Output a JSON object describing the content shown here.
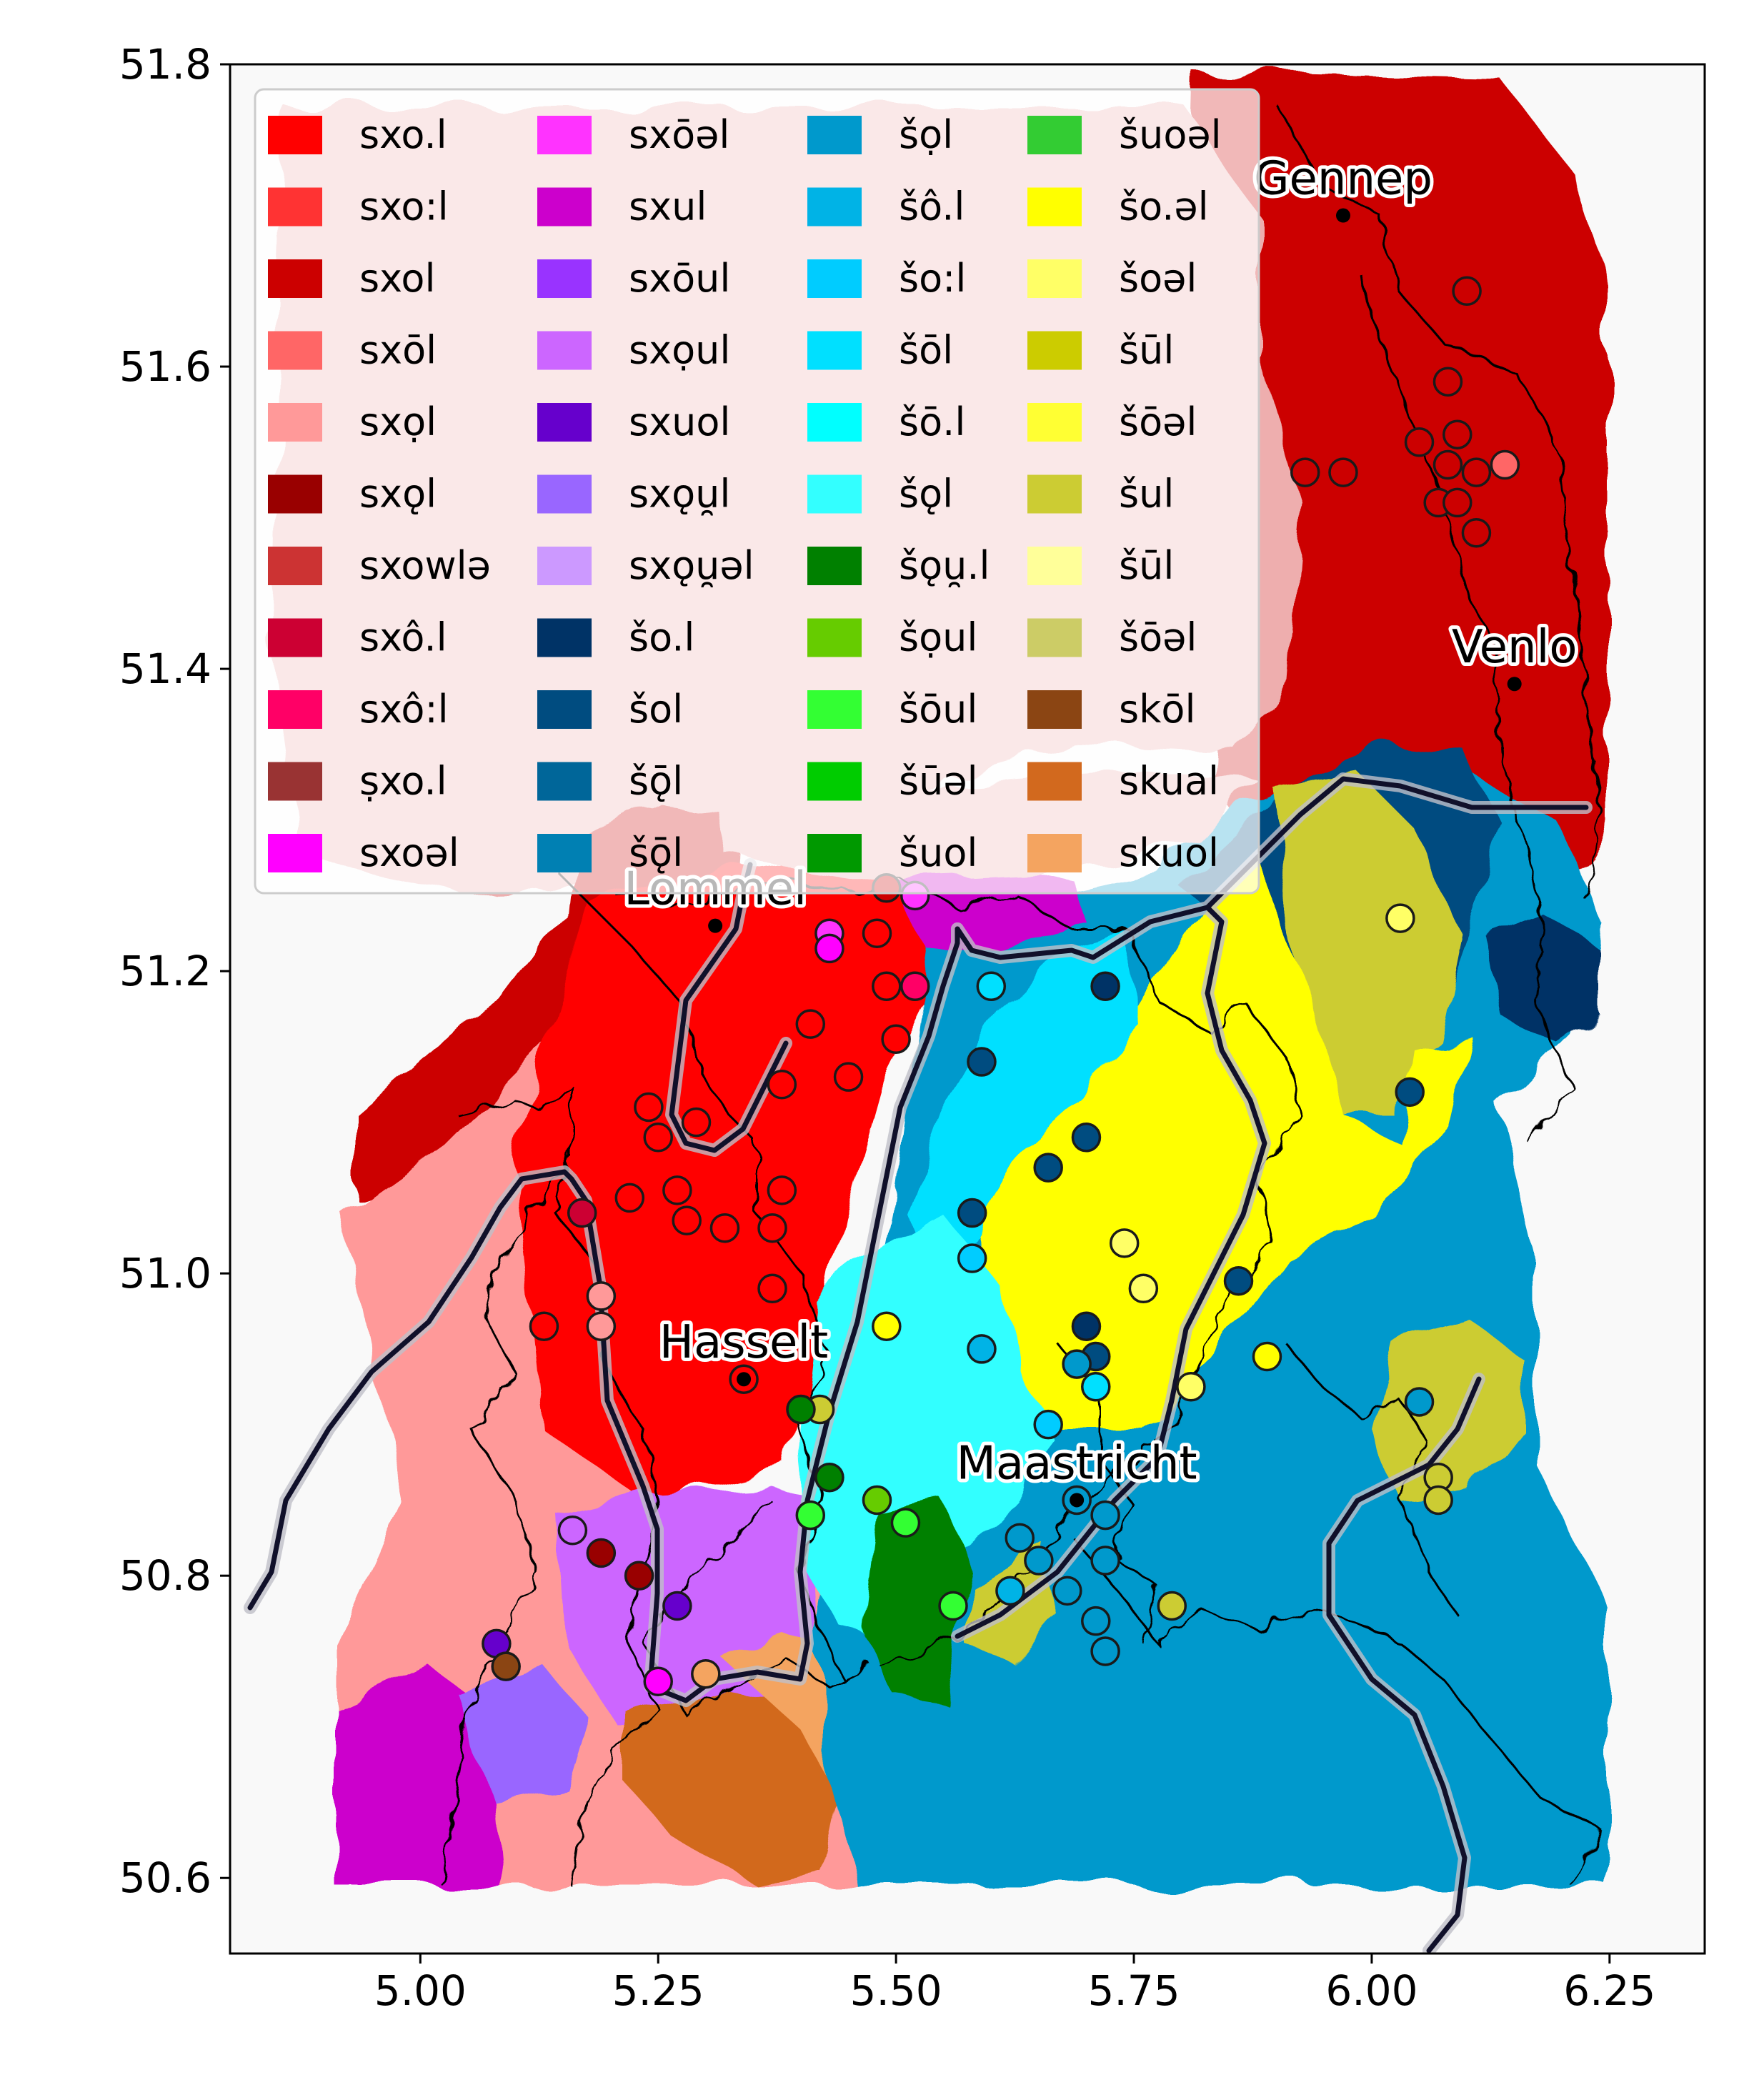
{
  "axes": {
    "x_ticks": [
      "5.00",
      "5.25",
      "5.50",
      "5.75",
      "6.00",
      "6.25"
    ],
    "y_ticks": [
      "51.8",
      "51.6",
      "51.4",
      "51.2",
      "51.0",
      "50.8",
      "50.6"
    ]
  },
  "cities": [
    {
      "name": "Gennep",
      "lon": 5.97,
      "lat": 51.7
    },
    {
      "name": "Venlo",
      "lon": 6.15,
      "lat": 51.39
    },
    {
      "name": "Lommel",
      "lon": 5.31,
      "lat": 51.23
    },
    {
      "name": "Hasselt",
      "lon": 5.34,
      "lat": 50.93
    },
    {
      "name": "Maastricht",
      "lon": 5.69,
      "lat": 50.85
    }
  ],
  "legend": {
    "placement": "upper-left",
    "columns": 4,
    "items": [
      {
        "label": "sxo.l",
        "color": "#ff0000"
      },
      {
        "label": "sxo:l",
        "color": "#ff3333"
      },
      {
        "label": "sxol",
        "color": "#cc0000"
      },
      {
        "label": "sxōl",
        "color": "#ff6666"
      },
      {
        "label": "sxọl",
        "color": "#ff9999"
      },
      {
        "label": "sxǫl",
        "color": "#990000"
      },
      {
        "label": "sxowlə",
        "color": "#cc3333"
      },
      {
        "label": "sxô.l",
        "color": "#cc0033"
      },
      {
        "label": "sxô:l",
        "color": "#ff0066"
      },
      {
        "label": "ṣxo.l",
        "color": "#993333"
      },
      {
        "label": "sxoəl",
        "color": "#ff00ff"
      },
      {
        "label": "sxōəl",
        "color": "#ff33ff"
      },
      {
        "label": "sxul",
        "color": "#cc00cc"
      },
      {
        "label": "sxōul",
        "color": "#9933ff"
      },
      {
        "label": "sxọul",
        "color": "#cc66ff"
      },
      {
        "label": "sxuol",
        "color": "#6600cc"
      },
      {
        "label": "sxǫu̯l",
        "color": "#9966ff"
      },
      {
        "label": "sxǫu̯əl",
        "color": "#cc99ff"
      },
      {
        "label": "šo.l",
        "color": "#003366"
      },
      {
        "label": "šol",
        "color": "#004c80"
      },
      {
        "label": "šǭl",
        "color": "#006699"
      },
      {
        "label": "šǭl",
        "color": "#0080b3"
      },
      {
        "label": "šọl",
        "color": "#0099cc"
      },
      {
        "label": "šô.l",
        "color": "#00b3e6"
      },
      {
        "label": "šo:l",
        "color": "#00ccff"
      },
      {
        "label": "šōl",
        "color": "#00e0ff"
      },
      {
        "label": "šō.l",
        "color": "#00ffff"
      },
      {
        "label": "šǫl",
        "color": "#33ffff"
      },
      {
        "label": "šǫu̯.l",
        "color": "#008000"
      },
      {
        "label": "šọul",
        "color": "#66cc00"
      },
      {
        "label": "šōul",
        "color": "#33ff33"
      },
      {
        "label": "šūəl",
        "color": "#00cc00"
      },
      {
        "label": "šuol",
        "color": "#009900"
      },
      {
        "label": "šuoəl",
        "color": "#33cc33"
      },
      {
        "label": "šo.əl",
        "color": "#ffff00"
      },
      {
        "label": "šoəl",
        "color": "#ffff66"
      },
      {
        "label": "šūl",
        "color": "#cccc00"
      },
      {
        "label": "šōəl",
        "color": "#ffff33"
      },
      {
        "label": "šul",
        "color": "#cccc33"
      },
      {
        "label": "šūl",
        "color": "#ffff99"
      },
      {
        "label": "šōəl",
        "color": "#cccc66"
      },
      {
        "label": "skōl",
        "color": "#8b4513"
      },
      {
        "label": "skual",
        "color": "#d2691e"
      },
      {
        "label": "skuol",
        "color": "#f4a460"
      }
    ]
  },
  "points": [
    {
      "lon": 6.1,
      "lat": 51.65,
      "v": 2
    },
    {
      "lon": 6.08,
      "lat": 51.59,
      "v": 2
    },
    {
      "lon": 6.05,
      "lat": 51.55,
      "v": 2
    },
    {
      "lon": 6.09,
      "lat": 51.555,
      "v": 2
    },
    {
      "lon": 6.08,
      "lat": 51.535,
      "v": 2
    },
    {
      "lon": 6.11,
      "lat": 51.53,
      "v": 2
    },
    {
      "lon": 6.07,
      "lat": 51.51,
      "v": 2
    },
    {
      "lon": 6.09,
      "lat": 51.51,
      "v": 2
    },
    {
      "lon": 6.11,
      "lat": 51.49,
      "v": 2
    },
    {
      "lon": 5.93,
      "lat": 51.53,
      "v": 2
    },
    {
      "lon": 5.97,
      "lat": 51.53,
      "v": 2
    },
    {
      "lon": 6.14,
      "lat": 51.535,
      "v": 3
    },
    {
      "lon": 6.03,
      "lat": 51.235,
      "v": 35
    },
    {
      "lon": 6.04,
      "lat": 51.12,
      "v": 19
    },
    {
      "lon": 5.49,
      "lat": 51.255,
      "v": 2
    },
    {
      "lon": 5.52,
      "lat": 51.25,
      "v": 11
    },
    {
      "lon": 5.43,
      "lat": 51.225,
      "v": 11
    },
    {
      "lon": 5.43,
      "lat": 51.215,
      "v": 10
    },
    {
      "lon": 5.48,
      "lat": 51.225,
      "v": 0
    },
    {
      "lon": 5.49,
      "lat": 51.19,
      "v": 0
    },
    {
      "lon": 5.52,
      "lat": 51.19,
      "v": 8
    },
    {
      "lon": 5.5,
      "lat": 51.155,
      "v": 0
    },
    {
      "lon": 5.41,
      "lat": 51.165,
      "v": 0
    },
    {
      "lon": 5.45,
      "lat": 51.13,
      "v": 0
    },
    {
      "lon": 5.38,
      "lat": 51.125,
      "v": 0
    },
    {
      "lon": 5.24,
      "lat": 51.11,
      "v": 0
    },
    {
      "lon": 5.29,
      "lat": 51.1,
      "v": 0
    },
    {
      "lon": 5.25,
      "lat": 51.09,
      "v": 0
    },
    {
      "lon": 5.38,
      "lat": 51.055,
      "v": 0
    },
    {
      "lon": 5.27,
      "lat": 51.055,
      "v": 0
    },
    {
      "lon": 5.22,
      "lat": 51.05,
      "v": 0
    },
    {
      "lon": 5.28,
      "lat": 51.035,
      "v": 0
    },
    {
      "lon": 5.32,
      "lat": 51.03,
      "v": 0
    },
    {
      "lon": 5.37,
      "lat": 51.03,
      "v": 0
    },
    {
      "lon": 5.37,
      "lat": 50.99,
      "v": 0
    },
    {
      "lon": 5.17,
      "lat": 51.04,
      "v": 7
    },
    {
      "lon": 5.19,
      "lat": 50.985,
      "v": 4
    },
    {
      "lon": 5.13,
      "lat": 50.965,
      "v": 0
    },
    {
      "lon": 5.19,
      "lat": 50.965,
      "v": 4
    },
    {
      "lon": 5.34,
      "lat": 50.93,
      "v": 0
    },
    {
      "lon": 5.6,
      "lat": 51.19,
      "v": 25
    },
    {
      "lon": 5.72,
      "lat": 51.19,
      "v": 18
    },
    {
      "lon": 5.59,
      "lat": 51.14,
      "v": 19
    },
    {
      "lon": 5.66,
      "lat": 51.07,
      "v": 19
    },
    {
      "lon": 5.7,
      "lat": 51.09,
      "v": 19
    },
    {
      "lon": 5.58,
      "lat": 51.04,
      "v": 19
    },
    {
      "lon": 5.58,
      "lat": 51.01,
      "v": 24
    },
    {
      "lon": 5.59,
      "lat": 50.95,
      "v": 23
    },
    {
      "lon": 5.74,
      "lat": 51.02,
      "v": 35
    },
    {
      "lon": 5.76,
      "lat": 50.99,
      "v": 35
    },
    {
      "lon": 5.86,
      "lat": 50.995,
      "v": 19
    },
    {
      "lon": 5.7,
      "lat": 50.965,
      "v": 18
    },
    {
      "lon": 5.71,
      "lat": 50.945,
      "v": 19
    },
    {
      "lon": 5.69,
      "lat": 50.94,
      "v": 22
    },
    {
      "lon": 5.71,
      "lat": 50.925,
      "v": 25
    },
    {
      "lon": 5.81,
      "lat": 50.925,
      "v": 35
    },
    {
      "lon": 5.89,
      "lat": 50.945,
      "v": 34
    },
    {
      "lon": 5.66,
      "lat": 50.9,
      "v": 24
    },
    {
      "lon": 5.49,
      "lat": 50.965,
      "v": 34
    },
    {
      "lon": 5.42,
      "lat": 50.91,
      "v": 38
    },
    {
      "lon": 5.4,
      "lat": 50.91,
      "v": 28
    },
    {
      "lon": 5.43,
      "lat": 50.865,
      "v": 28
    },
    {
      "lon": 5.41,
      "lat": 50.84,
      "v": 30
    },
    {
      "lon": 5.48,
      "lat": 50.85,
      "v": 29
    },
    {
      "lon": 5.51,
      "lat": 50.835,
      "v": 30
    },
    {
      "lon": 5.69,
      "lat": 50.85,
      "v": 22
    },
    {
      "lon": 5.63,
      "lat": 50.825,
      "v": 22
    },
    {
      "lon": 5.65,
      "lat": 50.81,
      "v": 22
    },
    {
      "lon": 5.72,
      "lat": 50.84,
      "v": 22
    },
    {
      "lon": 5.72,
      "lat": 50.81,
      "v": 22
    },
    {
      "lon": 5.62,
      "lat": 50.79,
      "v": 23
    },
    {
      "lon": 5.68,
      "lat": 50.79,
      "v": 22
    },
    {
      "lon": 5.71,
      "lat": 50.77,
      "v": 22
    },
    {
      "lon": 5.72,
      "lat": 50.75,
      "v": 22
    },
    {
      "lon": 5.56,
      "lat": 50.78,
      "v": 30
    },
    {
      "lon": 5.79,
      "lat": 50.78,
      "v": 38
    },
    {
      "lon": 6.05,
      "lat": 50.915,
      "v": 22
    },
    {
      "lon": 6.07,
      "lat": 50.865,
      "v": 38
    },
    {
      "lon": 6.07,
      "lat": 50.85,
      "v": 38
    },
    {
      "lon": 5.16,
      "lat": 50.83,
      "v": 14
    },
    {
      "lon": 5.19,
      "lat": 50.815,
      "v": 5
    },
    {
      "lon": 5.23,
      "lat": 50.8,
      "v": 5
    },
    {
      "lon": 5.27,
      "lat": 50.78,
      "v": 15
    },
    {
      "lon": 5.08,
      "lat": 50.755,
      "v": 15
    },
    {
      "lon": 5.09,
      "lat": 50.74,
      "v": 41
    },
    {
      "lon": 5.25,
      "lat": 50.73,
      "v": 10
    },
    {
      "lon": 5.3,
      "lat": 50.735,
      "v": 43
    }
  ]
}
